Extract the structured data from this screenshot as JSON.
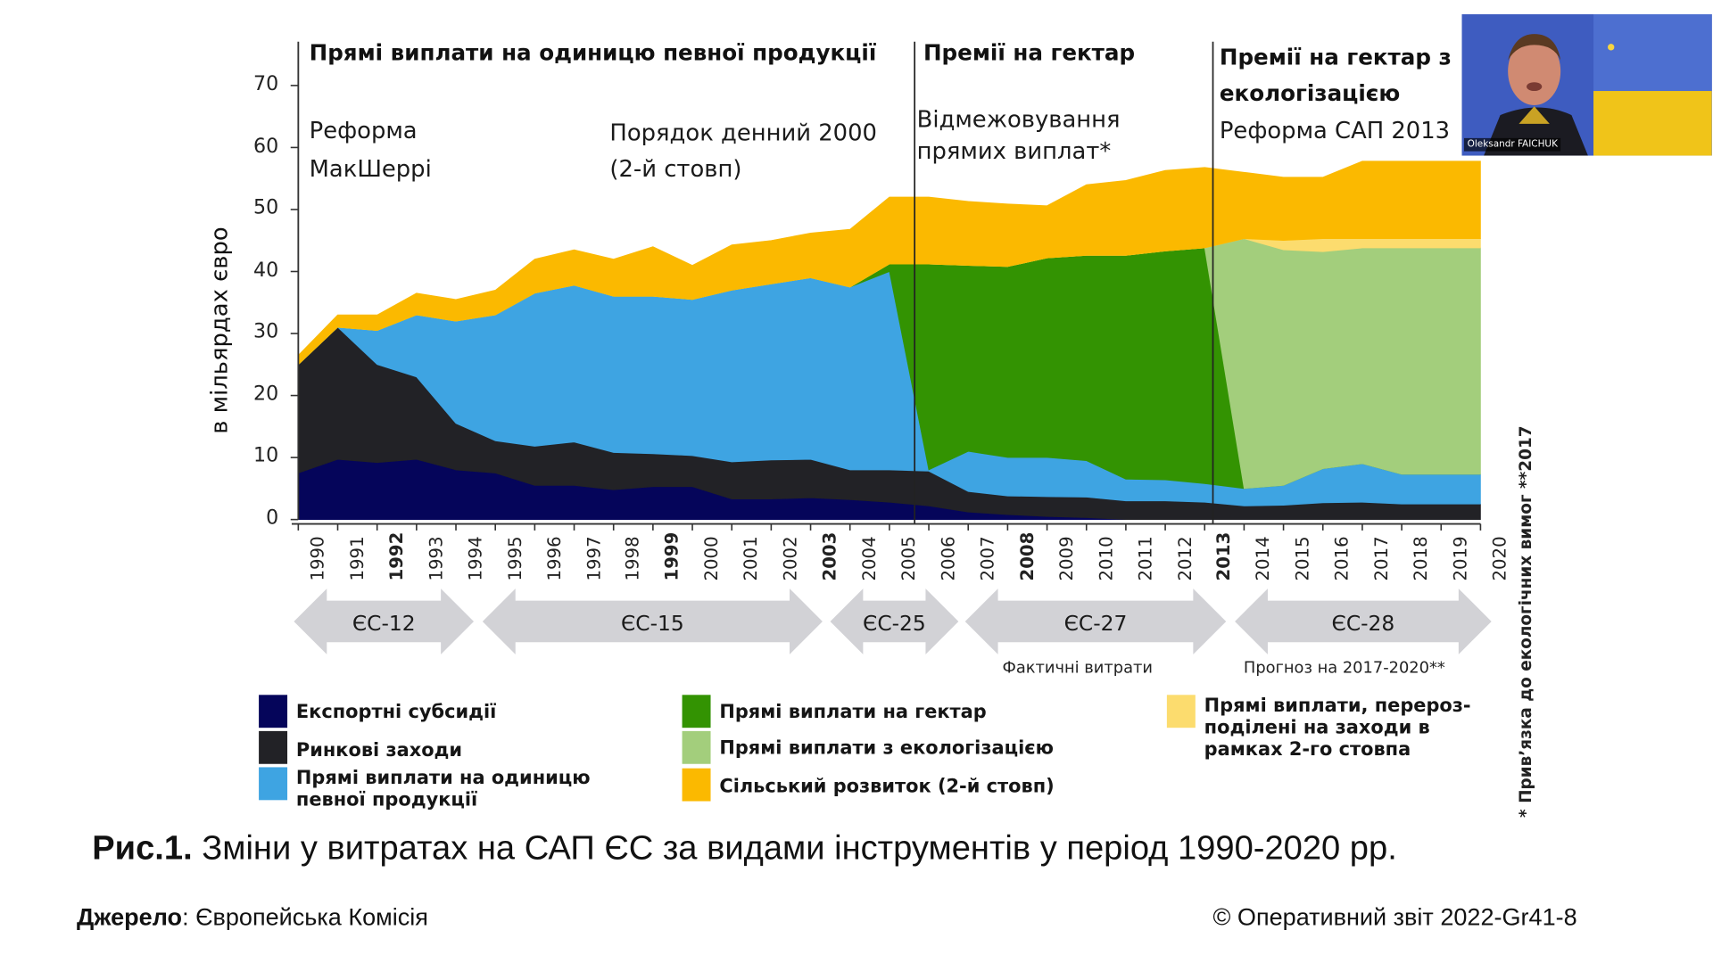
{
  "chart_data": {
    "type": "area",
    "stacked": true,
    "title": "Зміни у витратах на САП ЄС за видами інструментів у період 1990-2020 рр.",
    "ylabel": "в мільярдах євро",
    "xlabel": "",
    "ylim": [
      0,
      70
    ],
    "yticks": [
      0,
      10,
      20,
      30,
      40,
      50,
      60,
      70
    ],
    "grid": false,
    "x": [
      1990,
      1991,
      1992,
      1993,
      1994,
      1995,
      1996,
      1997,
      1998,
      1999,
      2000,
      2001,
      2002,
      2003,
      2004,
      2005,
      2006,
      2007,
      2008,
      2009,
      2010,
      2011,
      2012,
      2013,
      2014,
      2015,
      2016,
      2017,
      2018,
      2019,
      2020
    ],
    "bold_years": [
      1992,
      1999,
      2003,
      2008,
      2013
    ],
    "series": [
      {
        "name": "Експортні субсидії",
        "color": "#05055a",
        "values": [
          7.5,
          9.7,
          9.2,
          9.7,
          8.0,
          7.5,
          5.5,
          5.5,
          4.8,
          5.3,
          5.3,
          3.3,
          3.3,
          3.5,
          3.2,
          2.8,
          2.2,
          1.2,
          0.8,
          0.5,
          0.3,
          0,
          0,
          0,
          0,
          0,
          0,
          0,
          0,
          0,
          0
        ]
      },
      {
        "name": "Ринкові заходи",
        "color": "#222226",
        "values": [
          17.5,
          21.3,
          15.8,
          13.3,
          7.5,
          5.2,
          6.3,
          7.0,
          6.0,
          5.3,
          5.0,
          6.0,
          6.3,
          6.2,
          4.8,
          5.2,
          5.6,
          3.3,
          3.0,
          3.2,
          3.3,
          3.0,
          3.0,
          2.8,
          2.2,
          2.3,
          2.7,
          2.8,
          2.5,
          2.5,
          2.5
        ]
      },
      {
        "name": "Прямі виплати на одиницю певної продукції",
        "color": "#3ea4e2",
        "values": [
          0,
          0,
          5.5,
          10.0,
          16.5,
          20.3,
          24.7,
          25.3,
          25.2,
          25.4,
          25.2,
          27.7,
          28.4,
          29.3,
          29.5,
          32.0,
          0.2,
          6.5,
          6.2,
          6.3,
          5.9,
          3.5,
          3.4,
          3.0,
          2.8,
          3.2,
          5.5,
          6.2,
          4.8,
          4.8,
          4.8
        ]
      },
      {
        "name": "Прямі виплати на гектар",
        "color": "#339302",
        "values": [
          0,
          0,
          0,
          0,
          0,
          0,
          0,
          0,
          0,
          0,
          0,
          0,
          0,
          0,
          0,
          1.2,
          33.2,
          30.0,
          30.8,
          32.2,
          33.1,
          36.1,
          36.9,
          38.0,
          0,
          0,
          0,
          0,
          0,
          0,
          0
        ]
      },
      {
        "name": "Прямі виплати з екологізацією",
        "color": "#a3ce7c",
        "values": [
          0,
          0,
          0,
          0,
          0,
          0,
          0,
          0,
          0,
          0,
          0,
          0,
          0,
          0,
          0,
          0,
          0,
          0,
          0,
          0,
          0,
          0,
          0,
          0,
          40.3,
          38.0,
          35.0,
          34.8,
          36.5,
          36.5,
          36.5
        ]
      },
      {
        "name": "Прямі виплати, перерозподілені на заходи в рамках 2-го стовпа",
        "color": "#fcdc6e",
        "values": [
          0,
          0,
          0,
          0,
          0,
          0,
          0,
          0,
          0,
          0,
          0,
          0,
          0,
          0,
          0,
          0,
          0,
          0,
          0,
          0,
          0,
          0,
          0,
          0,
          0,
          1.5,
          2.1,
          1.5,
          1.5,
          1.5,
          1.5
        ]
      },
      {
        "name": "Сільський розвиток (2-й стовп)",
        "color": "#fbb900",
        "values": [
          1.5,
          2.0,
          2.5,
          3.5,
          3.5,
          4.0,
          5.5,
          5.7,
          6.0,
          8.0,
          5.5,
          7.3,
          7.0,
          7.2,
          9.3,
          10.8,
          10.8,
          10.3,
          10.1,
          8.4,
          11.4,
          12.1,
          13.0,
          13.0,
          10.7,
          10.2,
          9.9,
          12.5,
          12.5,
          12.5,
          12.5
        ]
      }
    ],
    "legend": "bottom",
    "phase_dividers": [
      2005.5,
      2013.5
    ]
  },
  "phases": [
    {
      "title": "Прямі виплати на одиницю певної продукції",
      "sub": [
        "Реформа МакШеррі",
        "Порядок денний 2000 (2-й стовп)"
      ]
    },
    {
      "title": "Премії на гектар",
      "sub": [
        "Відмежовування прямих виплат*"
      ]
    },
    {
      "title": "Премії на гектар з екологізацією",
      "sub": [
        "Реформа САП 2013"
      ]
    }
  ],
  "annotations": {
    "phase1_title": "Прямі виплати на одиницю певної продукції",
    "reform1_line1": "Реформа",
    "reform1_line2": "МакШеррі",
    "reform2_line1": "Порядок денний 2000",
    "reform2_line2": "(2-й стовп)",
    "phase2_title": "Премії на гектар",
    "decouple_line1": "Відмежовування",
    "decouple_line2": "прямих виплат*",
    "phase3_title_line1": "Премії на гектар з",
    "phase3_title_line2": "екологізацією",
    "reform3": "Реформа САП 2013",
    "actual_spend": "Фактичні витрати",
    "forecast": "Прогноз на 2017-2020**",
    "footnote": "* Прив’язка до екологічних вимог  **2017"
  },
  "eras": [
    {
      "label": "ЄС-12",
      "from": 1990,
      "to": 1994
    },
    {
      "label": "ЄС-15",
      "from": 1995,
      "to": 2003
    },
    {
      "label": "ЄС-25",
      "from": 2004,
      "to": 2006
    },
    {
      "label": "ЄС-27",
      "from": 2007,
      "to": 2013
    },
    {
      "label": "ЄС-28",
      "from": 2014,
      "to": 2020
    }
  ],
  "legend_items": [
    {
      "label": "Експортні субсидії",
      "color": "#05055a"
    },
    {
      "label": "Ринкові заходи",
      "color": "#222226"
    },
    {
      "label": "Прямі виплати на одиницю певної продукції",
      "line1": "Прямі виплати на одиницю",
      "line2": "певної продукції",
      "color": "#3ea4e2"
    },
    {
      "label": "Прямі виплати на гектар",
      "color": "#339302"
    },
    {
      "label": "Прямі виплати з екологізацією",
      "color": "#a3ce7c"
    },
    {
      "label": "Сільський розвиток (2-й стовп)",
      "color": "#fbb900"
    },
    {
      "label": "Прямі виплати, перерозподілені на заходи в рамках 2-го стовпа",
      "line1": "Прямі виплати, переroз-",
      "line2": "поділені на заходи в",
      "line3": "рамках 2-го стовпа",
      "color": "#fcdc6e"
    }
  ],
  "caption": {
    "prefix": "Рис.1.",
    "text": " Зміни у витратах на САП ЄС за видами інструментів у період 1990-2020 рр."
  },
  "source": {
    "label": "Джерело",
    "value": ":  Європейська Комісія",
    "copyright": "© Оперативний звіт 2022-Gr41-8"
  },
  "webcam": {
    "participant_name": "Oleksandr FAICHUK"
  }
}
